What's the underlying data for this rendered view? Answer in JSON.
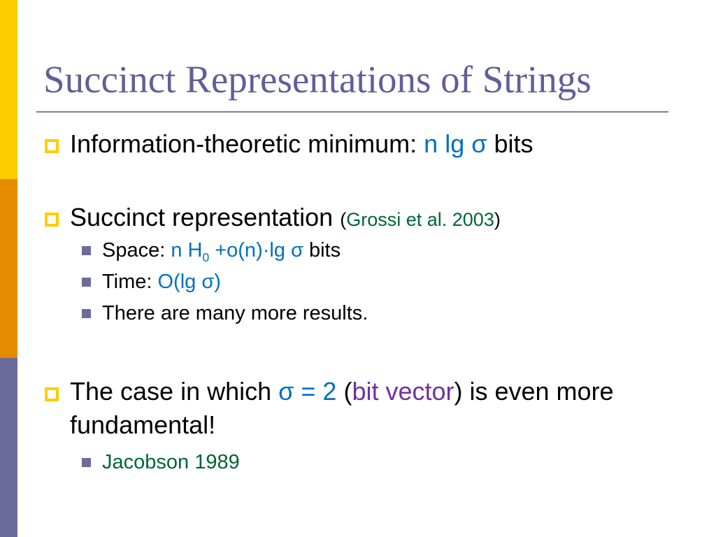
{
  "title": "Succinct Representations of Strings",
  "colors": {
    "bar_top": "#FFCC00",
    "bar_mid": "#E68A00",
    "bar_bottom": "#6B6B9E",
    "title": "#5F5F9A",
    "math": "#0070C0",
    "citation": "#006633",
    "highlight": "#7030A0"
  },
  "bullets": {
    "b1": {
      "text": "Information-theoretic minimum: ",
      "math": "n lg σ",
      "after": " bits"
    },
    "b2": {
      "text": "Succinct representation ",
      "open": "(",
      "cite": "Grossi et al. 2003",
      "close": ")",
      "sub": [
        {
          "label": "Space: ",
          "math_a": "n H",
          "math_sub": "0",
          "math_b": " +o(n)·lg σ",
          "after": " bits"
        },
        {
          "label": "Time: ",
          "math": "O(lg σ)"
        },
        {
          "label": "There are many more results."
        }
      ]
    },
    "b3": {
      "text": "The case in which ",
      "math": "σ = 2",
      "p1": " (",
      "highlight": "bit vector",
      "p2": ") is even more",
      "line2": "fundamental!",
      "sub": [
        {
          "cite": "Jacobson 1989"
        }
      ]
    }
  }
}
